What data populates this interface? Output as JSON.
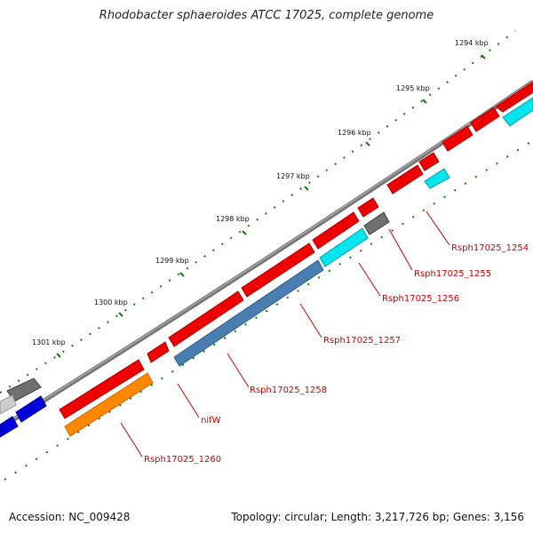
{
  "title": "Rhodobacter sphaeroides ATCC 17025, complete genome",
  "footer": {
    "accession": "Accession: NC_009428",
    "topology": "Topology: circular; Length: 3,217,726 bp; Genes: 3,156"
  },
  "ruler": [
    "1294 kbp",
    "1295 kbp",
    "1296 kbp",
    "1297 kbp",
    "1298 kbp",
    "1299 kbp",
    "1300 kbp",
    "1301 kbp"
  ],
  "colors": {
    "red_gene": "#ee0000",
    "cyan_gene": "#00e5ee",
    "gray_gene": "#707070",
    "blue_gene": "#0000dd",
    "steelblue_gene": "#4b7eb0",
    "orange_gene": "#ff8800",
    "backbone": "#777777",
    "ticks": "#117711",
    "label_red": "#cc0000"
  },
  "gene_labels": [
    "Rsph17025_1254",
    "Rsph17025_1255",
    "Rsph17025_1256",
    "Rsph17025_1257",
    "Rsph17025_1258",
    "nifW",
    "Rsph17025_1260"
  ]
}
